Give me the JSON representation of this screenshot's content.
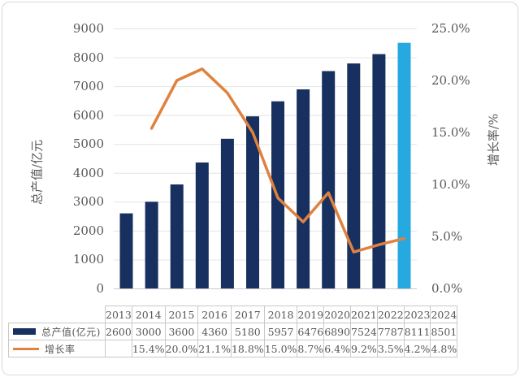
{
  "chart": {
    "left_axis_title": "总产值/亿元",
    "right_axis_title": "增长率/%",
    "left_ticks": [
      "0",
      "1000",
      "2000",
      "3000",
      "4000",
      "5000",
      "6000",
      "7000",
      "8000",
      "9000"
    ],
    "right_ticks": [
      "0.0%",
      "5.0%",
      "10.0%",
      "15.0%",
      "20.0%",
      "25.0%"
    ]
  },
  "chart_data": {
    "type": "combo-bar-line",
    "categories": [
      "2013",
      "2014",
      "2015",
      "2016",
      "2017",
      "2018",
      "2019",
      "2020",
      "2021",
      "2022",
      "2023",
      "2024"
    ],
    "series": [
      {
        "name": "总产值(亿元)",
        "type": "bar",
        "axis": "left",
        "values": [
          2600,
          3000,
          3600,
          4360,
          5180,
          5957,
          6476,
          6890,
          7524,
          7787,
          8111,
          8501
        ],
        "color": "#17305f",
        "last_bar_color": "#25a9e0"
      },
      {
        "name": "增长率",
        "type": "line",
        "axis": "right",
        "unit": "%",
        "values": [
          null,
          15.4,
          20.0,
          21.1,
          18.8,
          15.0,
          8.7,
          6.4,
          9.2,
          3.5,
          4.2,
          4.8
        ],
        "color": "#e0823f"
      }
    ],
    "left_axis": {
      "label": "总产值/亿元",
      "min": 0,
      "max": 9000,
      "step": 1000
    },
    "right_axis": {
      "label": "增长率/%",
      "min": 0,
      "max": 25,
      "step": 5
    },
    "grid": true,
    "legend_position": "bottom-table-left",
    "grid_color": "#e4e4e4",
    "axisline_color": "#c9c9c9",
    "text_color": "#595959"
  },
  "table": {
    "years": [
      "2013",
      "2014",
      "2015",
      "2016",
      "2017",
      "2018",
      "2019",
      "2020",
      "2021",
      "2022",
      "2023",
      "2024"
    ],
    "rows": [
      {
        "label": "总产值(亿元)",
        "swatch": "bar",
        "values": [
          "2600",
          "3000",
          "3600",
          "4360",
          "5180",
          "5957",
          "6476",
          "6890",
          "7524",
          "7787",
          "8111",
          "8501"
        ]
      },
      {
        "label": "增长率",
        "swatch": "line",
        "values": [
          "",
          "15.4%",
          "20.0%",
          "21.1%",
          "18.8%",
          "15.0%",
          "8.7%",
          "6.4%",
          "9.2%",
          "3.5%",
          "4.2%",
          "4.8%"
        ]
      }
    ]
  }
}
